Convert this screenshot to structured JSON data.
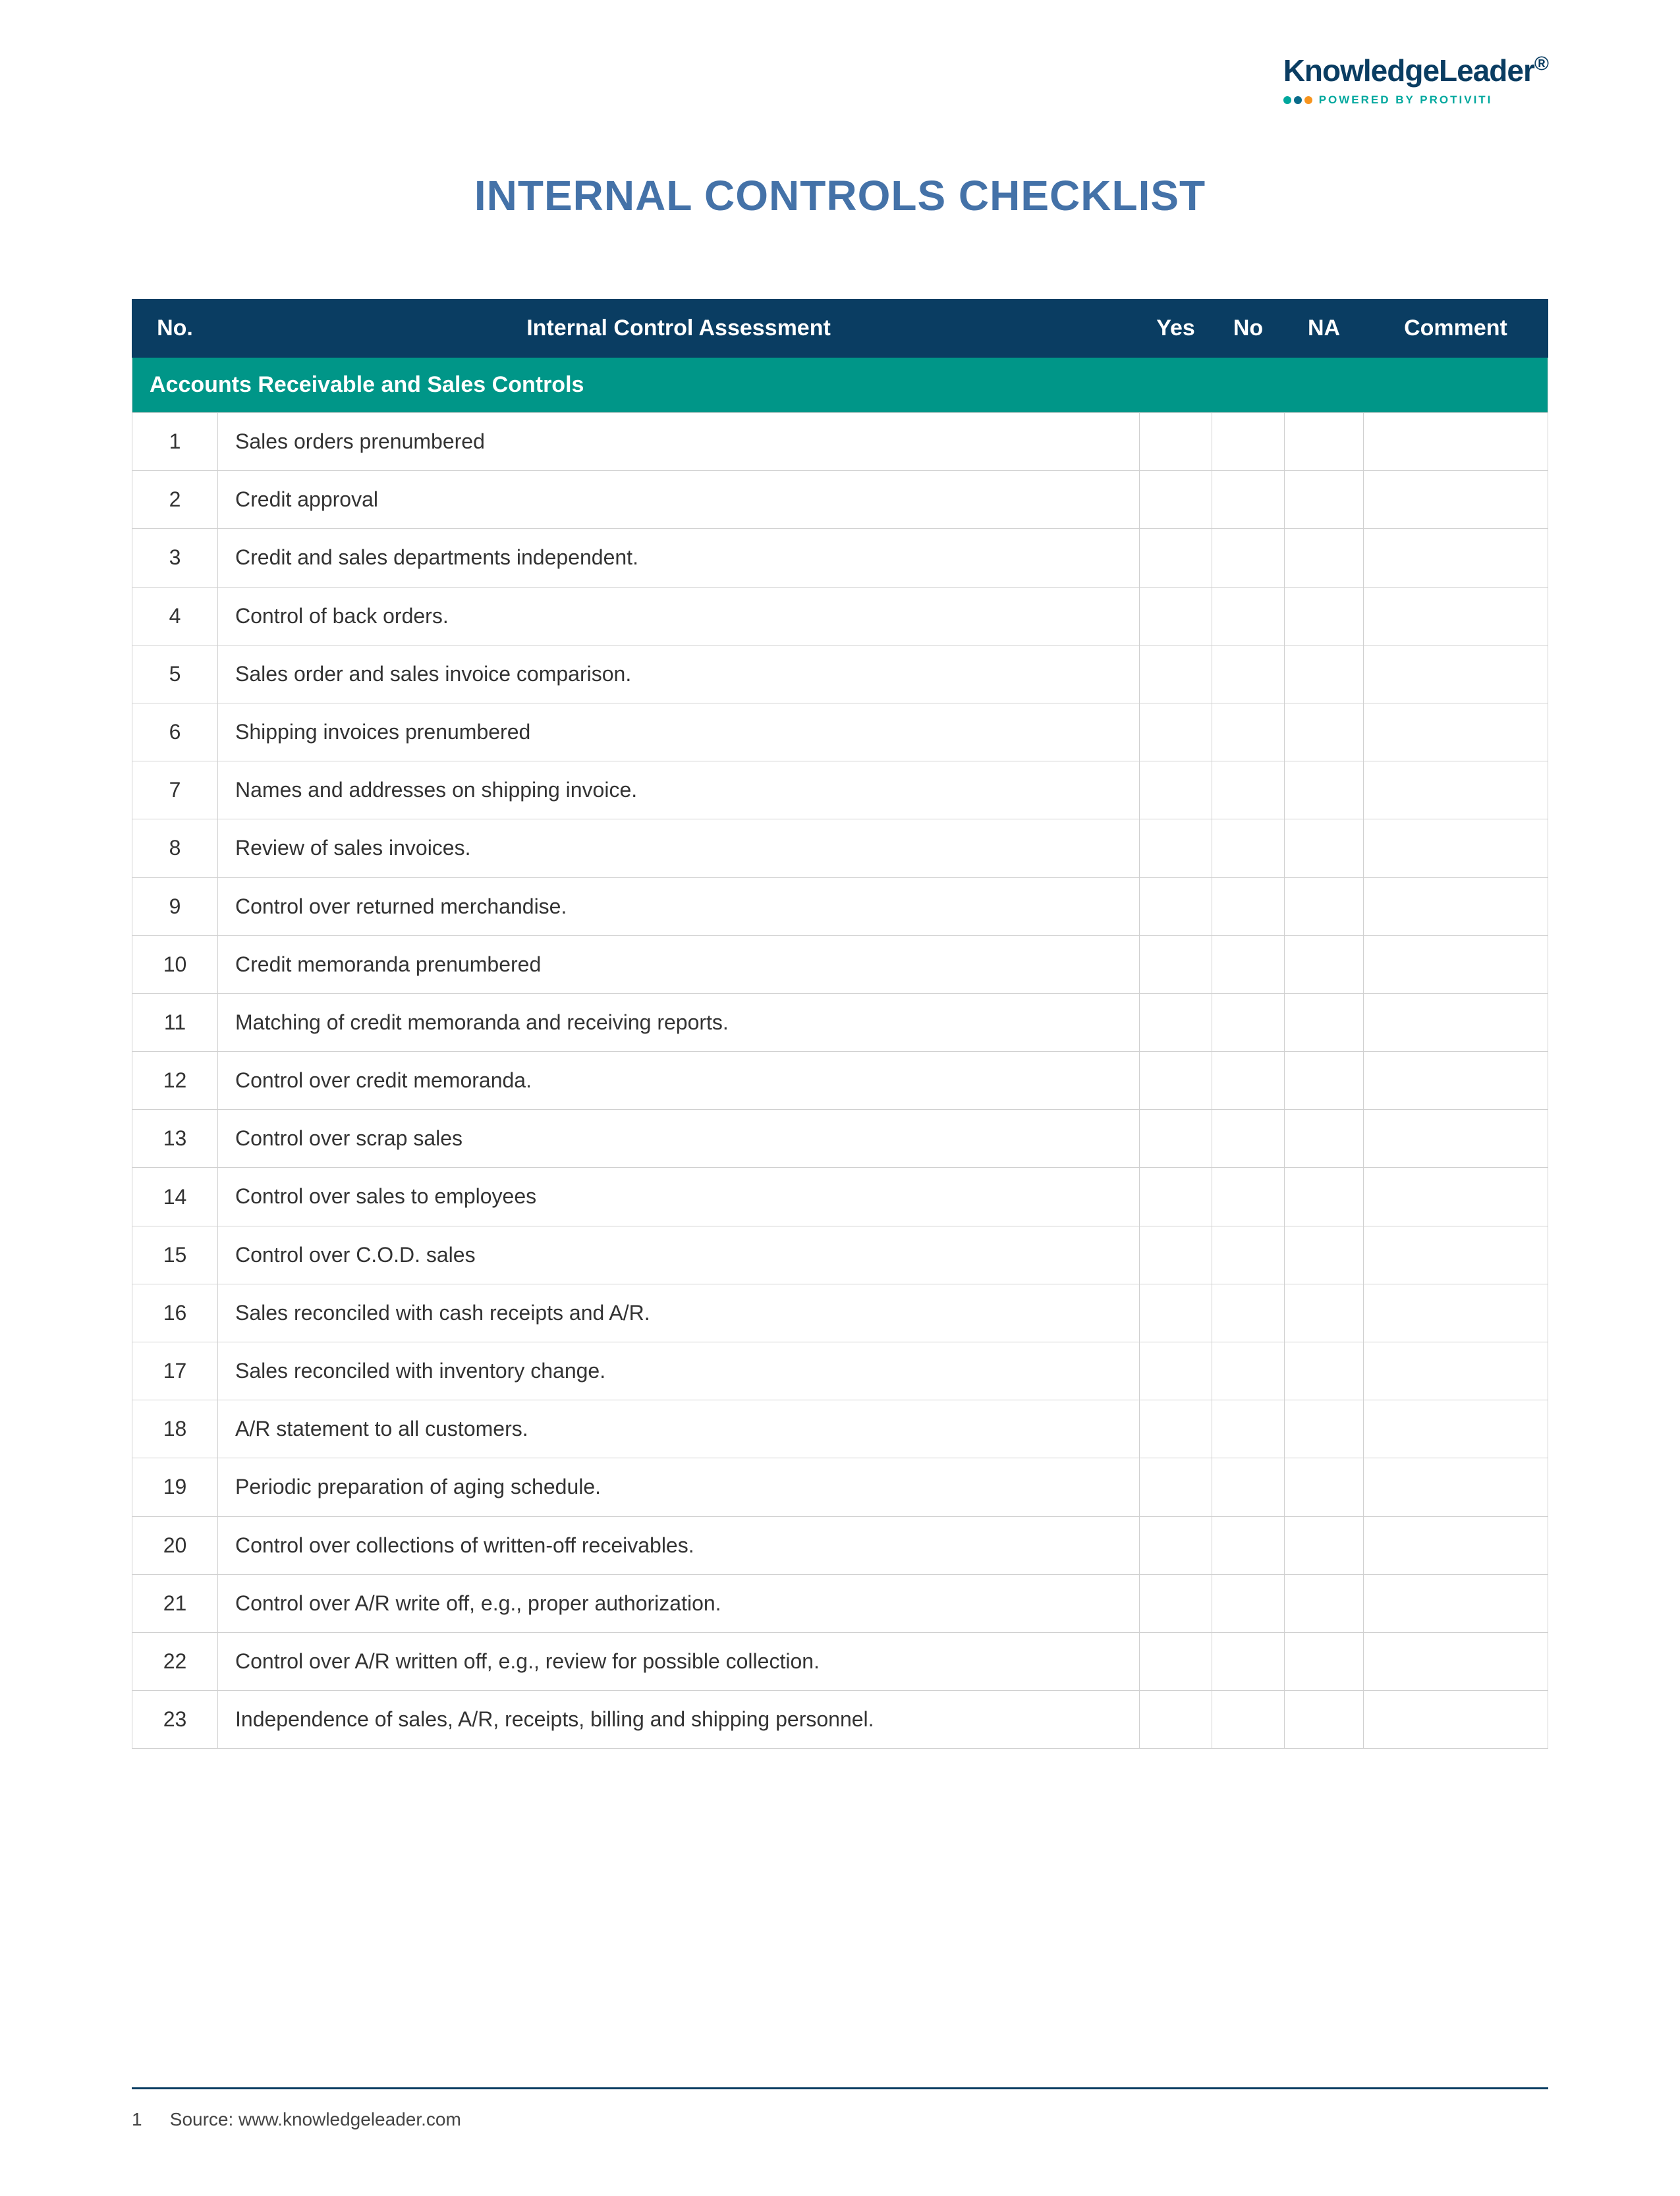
{
  "logo": {
    "brand": "KnowledgeLeader",
    "tagline": "POWERED BY PROTIVITI",
    "dot_colors": [
      "#00a79d",
      "#0a6b8a",
      "#f7941d"
    ]
  },
  "title": "INTERNAL CONTROLS CHECKLIST",
  "colors": {
    "title_color": "#4472a8",
    "header_bg": "#0a3d62",
    "header_text": "#ffffff",
    "section_bg": "#009688",
    "section_text": "#ffffff",
    "border": "#d0d0d0",
    "footer_line": "#0a3d62"
  },
  "table": {
    "columns": [
      "No.",
      "Internal Control Assessment",
      "Yes",
      "No",
      "NA",
      "Comment"
    ],
    "section_title": "Accounts Receivable and Sales Controls",
    "rows": [
      {
        "no": "1",
        "desc": "Sales orders prenumbered"
      },
      {
        "no": "2",
        "desc": "Credit approval"
      },
      {
        "no": "3",
        "desc": "Credit and sales departments independent."
      },
      {
        "no": "4",
        "desc": "Control of back orders."
      },
      {
        "no": "5",
        "desc": "Sales order and sales invoice comparison."
      },
      {
        "no": "6",
        "desc": "Shipping invoices prenumbered"
      },
      {
        "no": "7",
        "desc": "Names and addresses on shipping invoice."
      },
      {
        "no": "8",
        "desc": "Review of sales invoices."
      },
      {
        "no": "9",
        "desc": "Control over returned merchandise."
      },
      {
        "no": "10",
        "desc": "Credit memoranda prenumbered"
      },
      {
        "no": "11",
        "desc": "Matching of credit memoranda and receiving reports."
      },
      {
        "no": "12",
        "desc": "Control over credit memoranda."
      },
      {
        "no": "13",
        "desc": "Control over scrap sales"
      },
      {
        "no": "14",
        "desc": "Control over sales to employees"
      },
      {
        "no": "15",
        "desc": "Control over C.O.D. sales"
      },
      {
        "no": "16",
        "desc": "Sales reconciled with cash receipts and A/R."
      },
      {
        "no": "17",
        "desc": "Sales reconciled with inventory change."
      },
      {
        "no": "18",
        "desc": "A/R statement to all customers."
      },
      {
        "no": "19",
        "desc": "Periodic preparation of aging schedule."
      },
      {
        "no": "20",
        "desc": "Control over collections of written-off receivables."
      },
      {
        "no": "21",
        "desc": "Control over A/R write off, e.g., proper authorization."
      },
      {
        "no": "22",
        "desc": "Control over A/R written off, e.g., review for possible collection."
      },
      {
        "no": "23",
        "desc": "Independence of sales, A/R, receipts, billing and shipping personnel."
      }
    ]
  },
  "footer": {
    "page_number": "1",
    "source_text": "Source: www.knowledgeleader.com"
  }
}
